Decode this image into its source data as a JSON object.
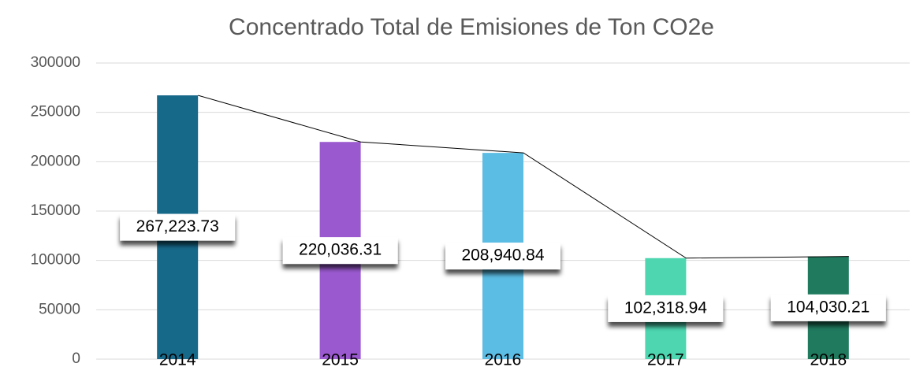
{
  "chart_data": {
    "type": "bar",
    "title": "Concentrado Total de Emisiones de Ton CO2e",
    "categories": [
      "2014",
      "2015",
      "2016",
      "2017",
      "2018"
    ],
    "values": [
      267223.73,
      220036.31,
      208940.84,
      102318.94,
      104030.21
    ],
    "value_labels": [
      "267,223.73",
      "220,036.31",
      "208,940.84",
      "102,318.94",
      "104,030.21"
    ],
    "colors": [
      "#17698a",
      "#9b59d0",
      "#5bbde4",
      "#4dd6b0",
      "#1f7a5e"
    ],
    "line_color": "#000000",
    "ylim": [
      0,
      300000
    ],
    "yticks": [
      0,
      50000,
      100000,
      150000,
      200000,
      250000,
      300000
    ],
    "grid": true
  }
}
